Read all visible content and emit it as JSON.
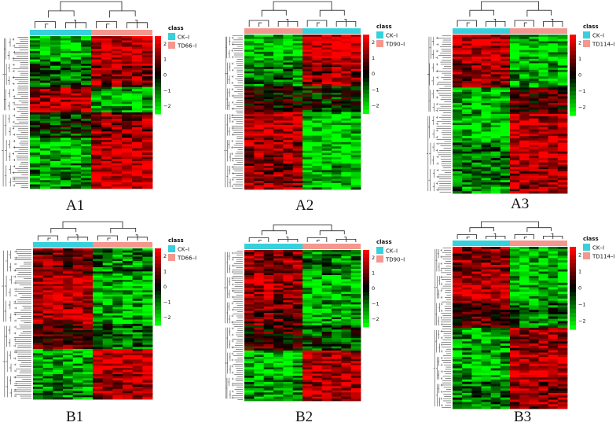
{
  "figure": {
    "colors": {
      "low": "#00ff00",
      "mid": "#000000",
      "high": "#ff0000",
      "ck": "#36d1dc",
      "td": "#f4978e",
      "tree": "#222222"
    },
    "scale_ticks": [
      "2",
      "1",
      "0",
      "−1",
      "−2"
    ],
    "legend_title": "class"
  },
  "chart_data": [
    {
      "id": "A1",
      "label": "A1",
      "type": "heatmap",
      "legend": [
        "CK–I",
        "TD66–I"
      ],
      "color_scale": {
        "min": -2.5,
        "max": 2.5
      },
      "groups": [
        {
          "name": "CK–I",
          "samples": 6
        },
        {
          "name": "TD66–I",
          "samples": 6
        }
      ],
      "pattern": [
        [
          -0.8,
          0.9
        ],
        [
          -0.4,
          0.6
        ],
        [
          0.8,
          -0.8
        ],
        [
          -0.2,
          0.6
        ],
        [
          -0.9,
          0.9
        ],
        [
          -0.6,
          1.0
        ]
      ]
    },
    {
      "id": "A2",
      "label": "A2",
      "type": "heatmap",
      "legend": [
        "CK–I",
        "TD90–I"
      ],
      "color_scale": {
        "min": -2.5,
        "max": 2.5
      },
      "groups": [
        {
          "name": "TD90–I",
          "samples": 6
        },
        {
          "name": "CK–I",
          "samples": 6
        }
      ],
      "pattern": [
        [
          -0.9,
          1.0
        ],
        [
          -0.5,
          0.6
        ],
        [
          0.1,
          -0.1
        ],
        [
          0.9,
          -0.9
        ],
        [
          0.7,
          -1.0
        ],
        [
          0.6,
          -0.8
        ]
      ]
    },
    {
      "id": "A3",
      "label": "A3",
      "type": "heatmap",
      "legend": [
        "CK–I",
        "TD114–I"
      ],
      "color_scale": {
        "min": -2.5,
        "max": 2.5
      },
      "groups": [
        {
          "name": "CK–I",
          "samples": 6
        },
        {
          "name": "TD114–I",
          "samples": 6
        }
      ],
      "pattern": [
        [
          0.9,
          -0.9
        ],
        [
          0.6,
          -0.7
        ],
        [
          -0.8,
          0.3
        ],
        [
          -0.9,
          0.8
        ],
        [
          -0.5,
          0.9
        ],
        [
          -0.6,
          0.7
        ]
      ]
    },
    {
      "id": "B1",
      "label": "B1",
      "type": "heatmap",
      "legend": [
        "CK–I",
        "TD66–I"
      ],
      "color_scale": {
        "min": -2.5,
        "max": 2.5
      },
      "groups": [
        {
          "name": "CK–I",
          "samples": 6
        },
        {
          "name": "TD66–I",
          "samples": 6
        }
      ],
      "pattern": [
        [
          0.5,
          -0.6
        ],
        [
          0.9,
          -0.9
        ],
        [
          0.8,
          -0.8
        ],
        [
          0.3,
          -0.4
        ],
        [
          -0.8,
          0.9
        ],
        [
          -0.6,
          0.7
        ]
      ]
    },
    {
      "id": "B2",
      "label": "B2",
      "type": "heatmap",
      "legend": [
        "CK–I",
        "TD90–I"
      ],
      "color_scale": {
        "min": -2.5,
        "max": 2.5
      },
      "groups": [
        {
          "name": "CK–I",
          "samples": 6
        },
        {
          "name": "TD90–I",
          "samples": 6
        }
      ],
      "pattern": [
        [
          0.6,
          -0.6
        ],
        [
          0.8,
          -0.9
        ],
        [
          0.5,
          -0.7
        ],
        [
          0.2,
          -0.3
        ],
        [
          -0.8,
          0.8
        ],
        [
          -0.7,
          0.8
        ]
      ]
    },
    {
      "id": "B3",
      "label": "B3",
      "type": "heatmap",
      "legend": [
        "CK–I",
        "TD114–I"
      ],
      "color_scale": {
        "min": -2.5,
        "max": 2.5
      },
      "groups": [
        {
          "name": "CK–I",
          "samples": 6
        },
        {
          "name": "TD114–I",
          "samples": 6
        }
      ],
      "pattern": [
        [
          0.6,
          -0.8
        ],
        [
          0.9,
          -0.8
        ],
        [
          0.4,
          -0.5
        ],
        [
          -0.7,
          0.6
        ],
        [
          -0.8,
          0.9
        ],
        [
          -0.5,
          0.6
        ]
      ]
    }
  ]
}
